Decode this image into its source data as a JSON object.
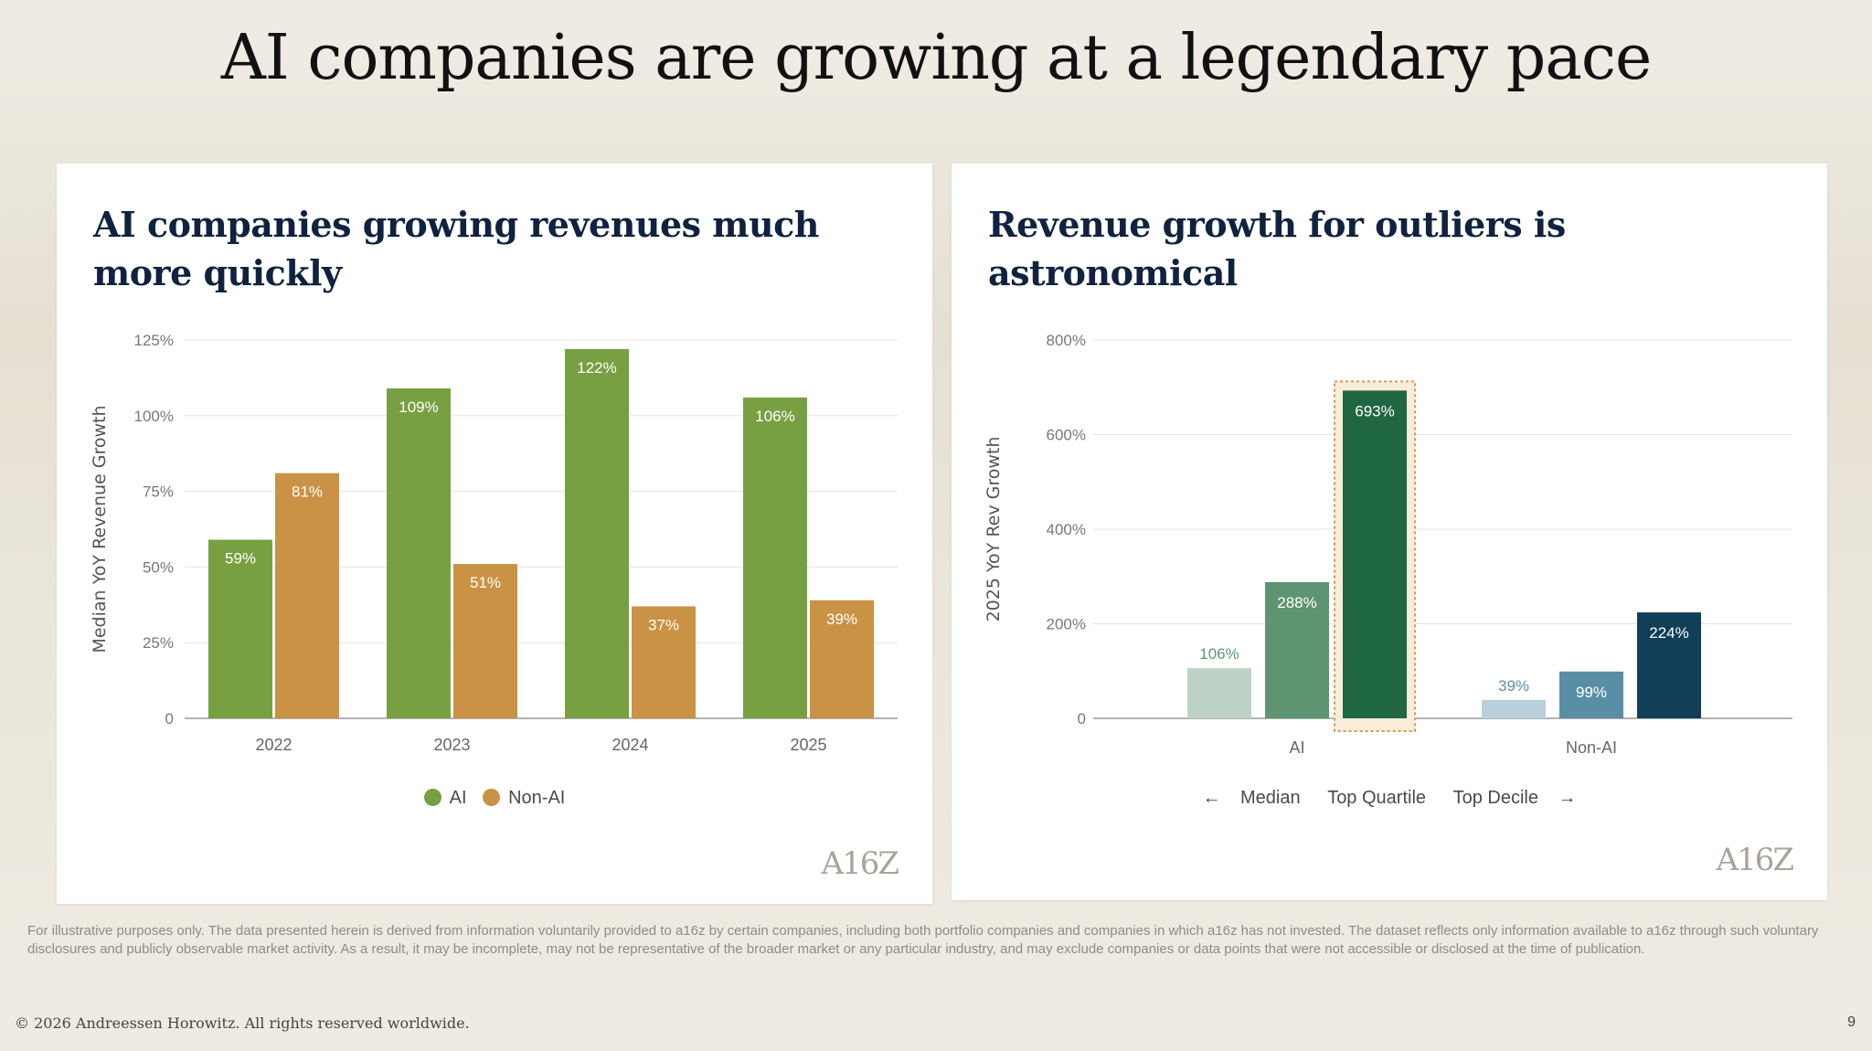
{
  "slide": {
    "title": "AI companies are growing at a legendary pace",
    "disclaimer": "For illustrative purposes only. The data presented herein is derived from information voluntarily provided to a16z by certain companies, including both portfolio companies and companies in which a16z has not invested. The dataset reflects only information available to a16z through such voluntary disclosures and publicly observable market activity. As a result, it may be incomplete, may not be representative of the broader market or any particular industry, and may exclude companies or data points that were not accessible or disclosed at the time of publication.",
    "footer": "© 2026 Andreessen Horowitz. All rights reserved worldwide.",
    "page_number": "9",
    "logo_text": "A16Z"
  },
  "colors": {
    "ai_green": "#77a042",
    "nonai_orange": "#c99244",
    "median_ai": "#bdd3c6",
    "quartile_ai": "#5f9472",
    "decile_ai": "#1e6740",
    "median_nonai": "#b8d0dc",
    "quartile_nonai": "#588fa6",
    "decile_nonai": "#103f57",
    "highlight_border": "#d49a55",
    "highlight_fill": "#f9ecd9"
  },
  "chart_data": [
    {
      "type": "bar",
      "title": "AI companies growing revenues much more quickly",
      "ylabel": "Median YoY Revenue Growth",
      "xlabel": "",
      "categories": [
        "2022",
        "2023",
        "2024",
        "2025"
      ],
      "series": [
        {
          "name": "AI",
          "values": [
            59,
            109,
            122,
            106
          ]
        },
        {
          "name": "Non-AI",
          "values": [
            81,
            51,
            37,
            39
          ]
        }
      ],
      "ylim": [
        0,
        125
      ],
      "yticks": [
        0,
        25,
        50,
        75,
        100,
        125
      ],
      "ytick_labels": [
        "0",
        "25%",
        "50%",
        "75%",
        "100%",
        "125%"
      ],
      "grid": true,
      "legend": "bottom-center"
    },
    {
      "type": "bar",
      "title": "Revenue growth for outliers is astronomical",
      "ylabel": "2025 YoY Rev Growth",
      "xlabel": "",
      "categories": [
        "AI",
        "Non-AI"
      ],
      "series": [
        {
          "name": "Median",
          "values": [
            106,
            39
          ]
        },
        {
          "name": "Top Quartile",
          "values": [
            288,
            99
          ]
        },
        {
          "name": "Top Decile",
          "values": [
            693,
            224
          ]
        }
      ],
      "ylim": [
        0,
        800
      ],
      "yticks": [
        0,
        200,
        400,
        600,
        800
      ],
      "ytick_labels": [
        "0",
        "200%",
        "400%",
        "600%",
        "800%"
      ],
      "grid": true,
      "highlight": {
        "category": "AI",
        "series": "Top Decile"
      },
      "legend": "bottom-center",
      "legend_arrows": {
        "left": "←",
        "right": "→"
      }
    }
  ]
}
